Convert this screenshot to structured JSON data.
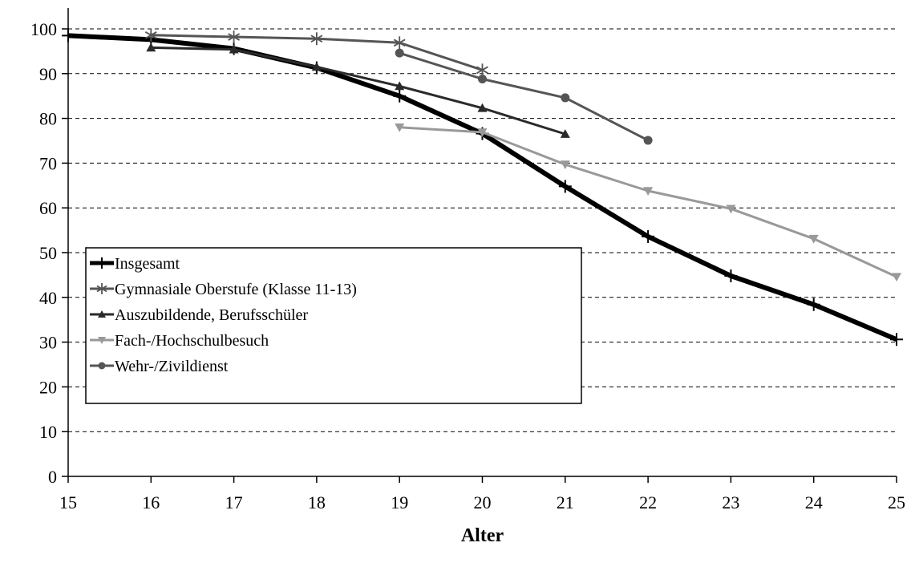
{
  "chart_data": {
    "type": "line",
    "title": "",
    "xlabel": "Alter",
    "ylabel": "",
    "xlim": [
      15,
      25
    ],
    "ylim": [
      0,
      100
    ],
    "x_ticks": [
      15,
      16,
      17,
      18,
      19,
      20,
      21,
      22,
      23,
      24,
      25
    ],
    "y_ticks": [
      0,
      10,
      20,
      30,
      40,
      50,
      60,
      70,
      80,
      90,
      100
    ],
    "grid": "horizontal-dashed",
    "legend_position": "left-middle",
    "series": [
      {
        "name": "Insgesamt",
        "marker": "plus",
        "color": "#000000",
        "points": [
          [
            15,
            98.5
          ],
          [
            16,
            97.6
          ],
          [
            17,
            95.6
          ],
          [
            18,
            91.3
          ],
          [
            19,
            85.0
          ],
          [
            20,
            76.6
          ],
          [
            21,
            64.8
          ],
          [
            22,
            53.6
          ],
          [
            23,
            44.8
          ],
          [
            24,
            38.4
          ],
          [
            25,
            30.6
          ]
        ]
      },
      {
        "name": "Gymnasiale Oberstufe (Klasse 11-13)",
        "marker": "asterisk",
        "color": "#555555",
        "points": [
          [
            16,
            98.6
          ],
          [
            17,
            98.2
          ],
          [
            18,
            97.8
          ],
          [
            19,
            96.9
          ],
          [
            20,
            90.8
          ]
        ]
      },
      {
        "name": "Auszubildende, Berufsschüler",
        "marker": "triangle-up",
        "color": "#2a2a2a",
        "points": [
          [
            16,
            95.8
          ],
          [
            17,
            95.4
          ],
          [
            18,
            91.5
          ],
          [
            19,
            87.2
          ],
          [
            20,
            82.3
          ],
          [
            21,
            76.5
          ]
        ]
      },
      {
        "name": "Fach-/Hochschulbesuch",
        "marker": "triangle-down",
        "color": "#999999",
        "points": [
          [
            19,
            78.0
          ],
          [
            20,
            76.9
          ],
          [
            21,
            69.7
          ],
          [
            22,
            63.8
          ],
          [
            23,
            59.8
          ],
          [
            24,
            53.1
          ],
          [
            25,
            44.6
          ]
        ]
      },
      {
        "name": "Wehr-/Zivildienst",
        "marker": "circle",
        "color": "#555555",
        "points": [
          [
            19,
            94.6
          ],
          [
            20,
            88.8
          ],
          [
            21,
            84.6
          ],
          [
            22,
            75.1
          ]
        ]
      }
    ]
  }
}
